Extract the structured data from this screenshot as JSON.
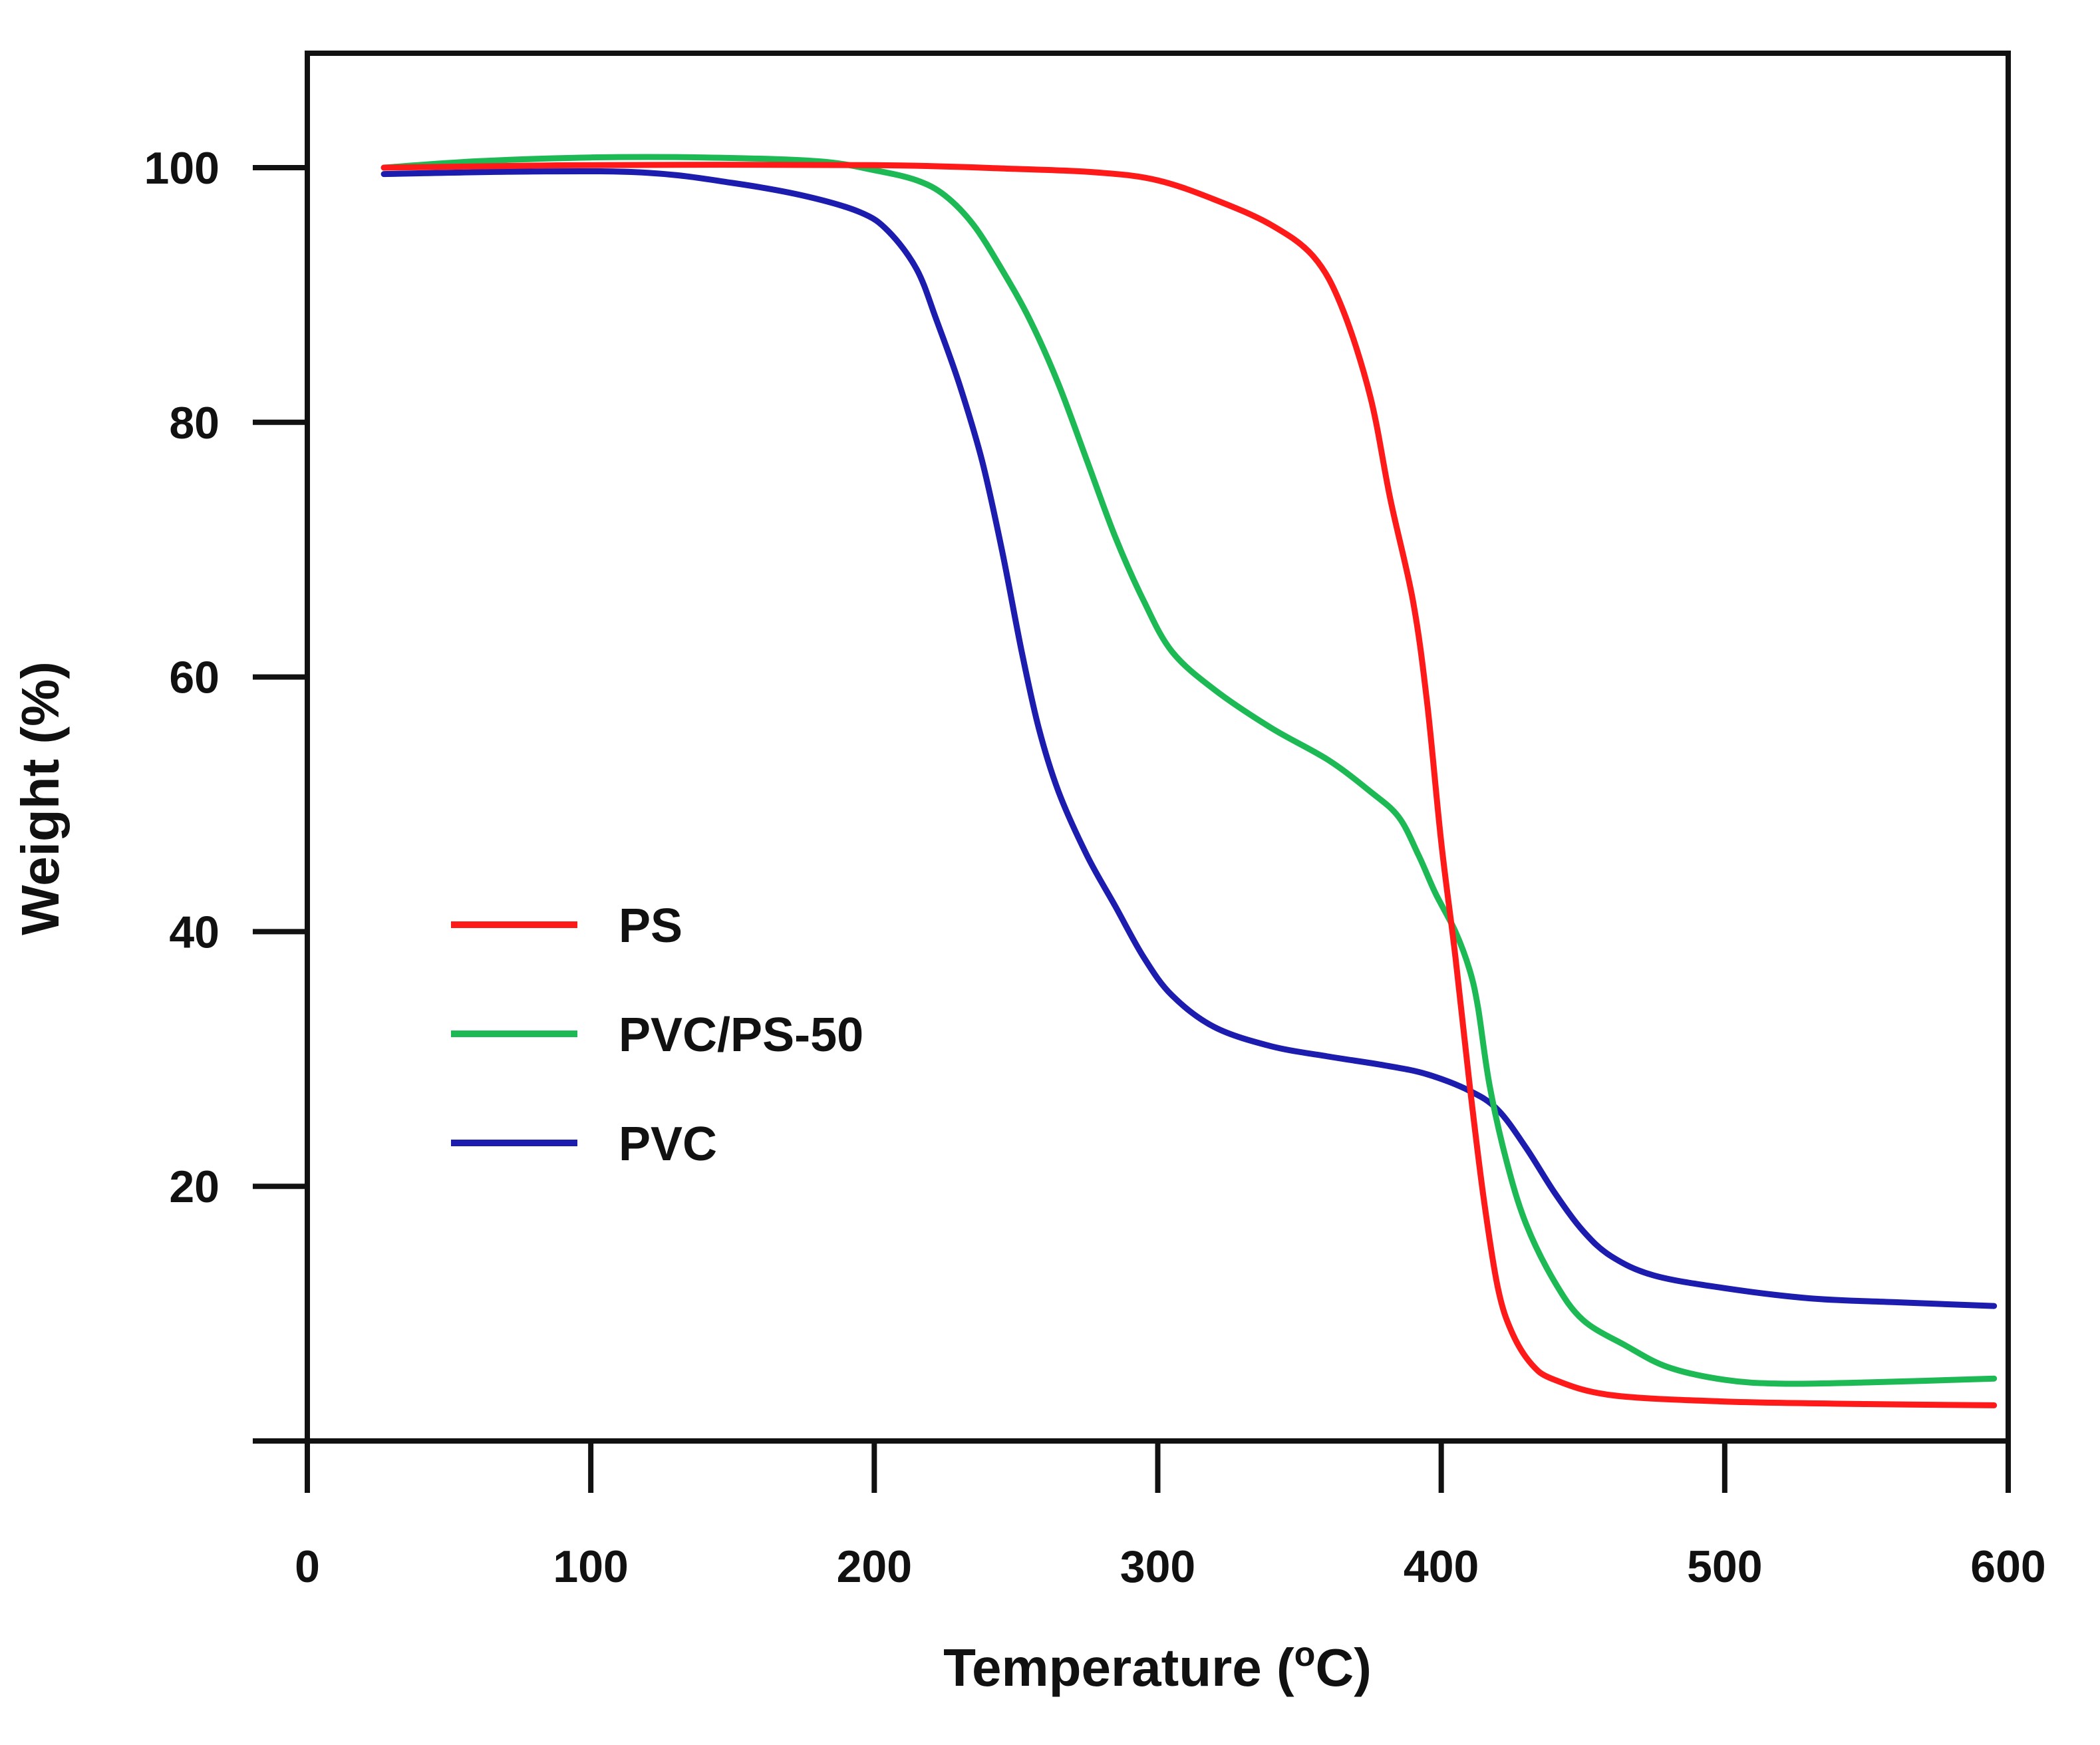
{
  "chart_data": {
    "type": "line",
    "title": "",
    "xlabel": "Temperature (",
    "xlabel_sup": "o",
    "xlabel_end": "C)",
    "ylabel": "Weight (%)",
    "xlim": [
      0,
      600
    ],
    "ylim": [
      0,
      110
    ],
    "x_ticks": [
      0,
      100,
      200,
      300,
      400,
      500,
      600
    ],
    "x_tick_labels": [
      "0",
      "100",
      "200",
      "300",
      "400",
      "500",
      "600"
    ],
    "y_ticks": [
      20,
      40,
      60,
      80,
      100
    ],
    "y_tick_labels": [
      "20",
      "40",
      "60",
      "80",
      "100"
    ],
    "grid": false,
    "legend_position": "center-left",
    "series": [
      {
        "name": "PS",
        "color": "#ff1a1a",
        "points": [
          [
            27,
            100
          ],
          [
            100,
            100.2
          ],
          [
            200,
            100.2
          ],
          [
            250,
            99.9
          ],
          [
            280,
            99.6
          ],
          [
            300,
            99
          ],
          [
            320,
            97.5
          ],
          [
            340,
            95.5
          ],
          [
            355,
            93
          ],
          [
            365,
            89
          ],
          [
            375,
            82
          ],
          [
            382,
            74
          ],
          [
            390,
            66
          ],
          [
            395,
            58
          ],
          [
            400,
            47
          ],
          [
            405,
            38
          ],
          [
            410,
            28
          ],
          [
            415,
            19
          ],
          [
            420,
            12
          ],
          [
            425,
            8.5
          ],
          [
            432,
            6
          ],
          [
            440,
            4.8
          ],
          [
            460,
            3.6
          ],
          [
            500,
            3.1
          ],
          [
            550,
            2.9
          ],
          [
            595,
            2.8
          ]
        ]
      },
      {
        "name": "PVC/PS-50",
        "color": "#1db954",
        "points": [
          [
            27,
            100
          ],
          [
            60,
            100.5
          ],
          [
            100,
            100.8
          ],
          [
            140,
            100.8
          ],
          [
            180,
            100.5
          ],
          [
            200,
            99.8
          ],
          [
            215,
            99
          ],
          [
            225,
            97.8
          ],
          [
            235,
            95.5
          ],
          [
            245,
            92
          ],
          [
            255,
            88
          ],
          [
            265,
            83
          ],
          [
            275,
            77
          ],
          [
            285,
            71
          ],
          [
            295,
            66
          ],
          [
            305,
            62
          ],
          [
            320,
            59
          ],
          [
            340,
            56
          ],
          [
            360,
            53.5
          ],
          [
            375,
            51
          ],
          [
            385,
            49
          ],
          [
            392,
            46
          ],
          [
            398,
            43
          ],
          [
            405,
            40
          ],
          [
            410,
            37
          ],
          [
            413,
            34
          ],
          [
            417,
            28
          ],
          [
            423,
            22
          ],
          [
            430,
            17
          ],
          [
            440,
            12.5
          ],
          [
            450,
            9.5
          ],
          [
            465,
            7.5
          ],
          [
            480,
            5.8
          ],
          [
            500,
            4.8
          ],
          [
            520,
            4.5
          ],
          [
            550,
            4.6
          ],
          [
            595,
            4.9
          ]
        ]
      },
      {
        "name": "PVC",
        "color": "#1c1caf",
        "points": [
          [
            27,
            99.5
          ],
          [
            80,
            99.7
          ],
          [
            120,
            99.6
          ],
          [
            150,
            98.8
          ],
          [
            175,
            97.8
          ],
          [
            195,
            96.5
          ],
          [
            205,
            95
          ],
          [
            215,
            92
          ],
          [
            222,
            88
          ],
          [
            230,
            83
          ],
          [
            238,
            77
          ],
          [
            245,
            70
          ],
          [
            252,
            62
          ],
          [
            258,
            56
          ],
          [
            265,
            51
          ],
          [
            275,
            46
          ],
          [
            285,
            42
          ],
          [
            295,
            38
          ],
          [
            305,
            35
          ],
          [
            320,
            32.5
          ],
          [
            340,
            31
          ],
          [
            360,
            30.2
          ],
          [
            380,
            29.5
          ],
          [
            395,
            28.8
          ],
          [
            410,
            27.5
          ],
          [
            420,
            26
          ],
          [
            430,
            23
          ],
          [
            440,
            19.5
          ],
          [
            450,
            16.5
          ],
          [
            460,
            14.5
          ],
          [
            475,
            13
          ],
          [
            500,
            12
          ],
          [
            530,
            11.2
          ],
          [
            560,
            10.9
          ],
          [
            595,
            10.6
          ]
        ]
      }
    ]
  }
}
